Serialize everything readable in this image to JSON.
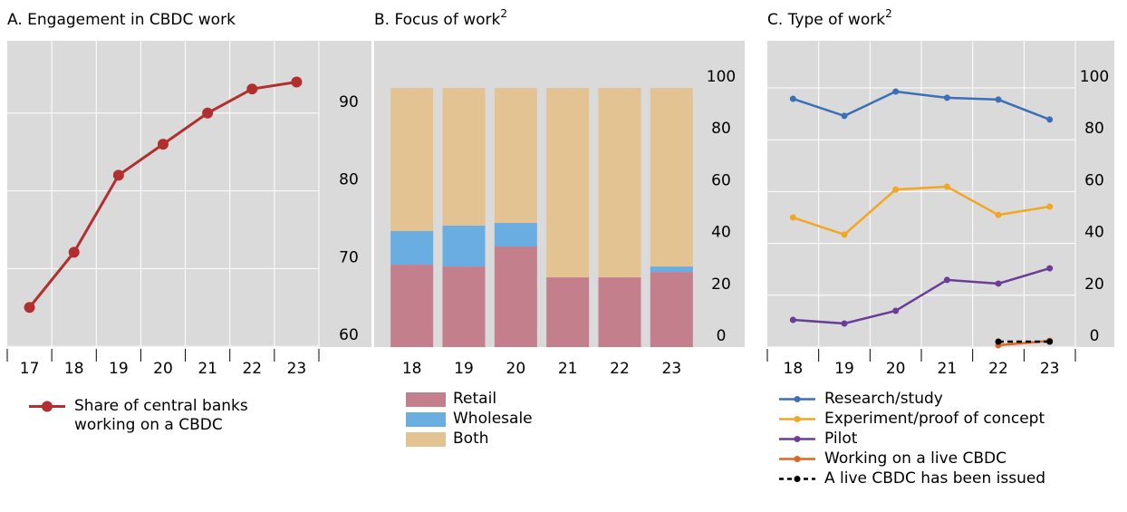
{
  "chart_data": [
    {
      "type": "line",
      "title": "A. Engagement in CBDC work",
      "categories": [
        "17",
        "18",
        "19",
        "20",
        "21",
        "22",
        "23"
      ],
      "series": [
        {
          "name": "Share of central banks working on a CBDC",
          "color": "#b22f2f",
          "values": [
            65.0,
            72.1,
            82.0,
            86.0,
            90.0,
            93.1,
            94.0
          ]
        }
      ],
      "ylim": [
        59.9,
        99.3
      ],
      "yticks": [
        60,
        70,
        80,
        90
      ],
      "grid": true
    },
    {
      "type": "stacked_bar",
      "title": "B. Focus of work",
      "title_note": "2",
      "categories": [
        "18",
        "19",
        "20",
        "21",
        "22",
        "23"
      ],
      "series": [
        {
          "name": "Retail",
          "color": "#c47f8c",
          "values": [
            31.8,
            31.1,
            38.8,
            26.9,
            26.9,
            29.0
          ]
        },
        {
          "name": "Wholesale",
          "color": "#6aade0",
          "values": [
            13.0,
            15.8,
            9.1,
            0,
            0,
            2.1
          ]
        },
        {
          "name": "Both",
          "color": "#e3c391",
          "values": [
            55.2,
            53.1,
            52.1,
            73.1,
            73.1,
            68.9
          ]
        }
      ],
      "ylim": [
        0,
        118.2
      ],
      "yticks": [
        0,
        20,
        40,
        60,
        80,
        100
      ],
      "grid": false
    },
    {
      "type": "line",
      "title": "C. Type of work",
      "title_note": "2",
      "categories": [
        "18",
        "19",
        "20",
        "21",
        "22",
        "23"
      ],
      "series": [
        {
          "name": "Research/study",
          "color": "#3b6fb6",
          "values": [
            95.8,
            89.2,
            98.6,
            96.2,
            95.5,
            87.8
          ]
        },
        {
          "name": "Experiment/proof of concept",
          "color": "#f2a623",
          "values": [
            50.0,
            43.4,
            60.8,
            61.9,
            51.0,
            54.2
          ]
        },
        {
          "name": "Pilot",
          "color": "#6b3d96",
          "values": [
            10.5,
            9.1,
            14.0,
            25.9,
            24.5,
            30.4
          ]
        },
        {
          "name": "Working on a live CBDC",
          "color": "#e0661f",
          "values": [
            null,
            null,
            null,
            null,
            0.7,
            2.4
          ]
        },
        {
          "name": "A live CBDC has been issued",
          "color": "#000000",
          "dash": true,
          "values": [
            null,
            null,
            null,
            null,
            2.1,
            2.1
          ]
        }
      ],
      "ylim": [
        0,
        118.2
      ],
      "yticks": [
        0,
        20,
        40,
        60,
        80,
        100
      ],
      "grid": true
    }
  ]
}
